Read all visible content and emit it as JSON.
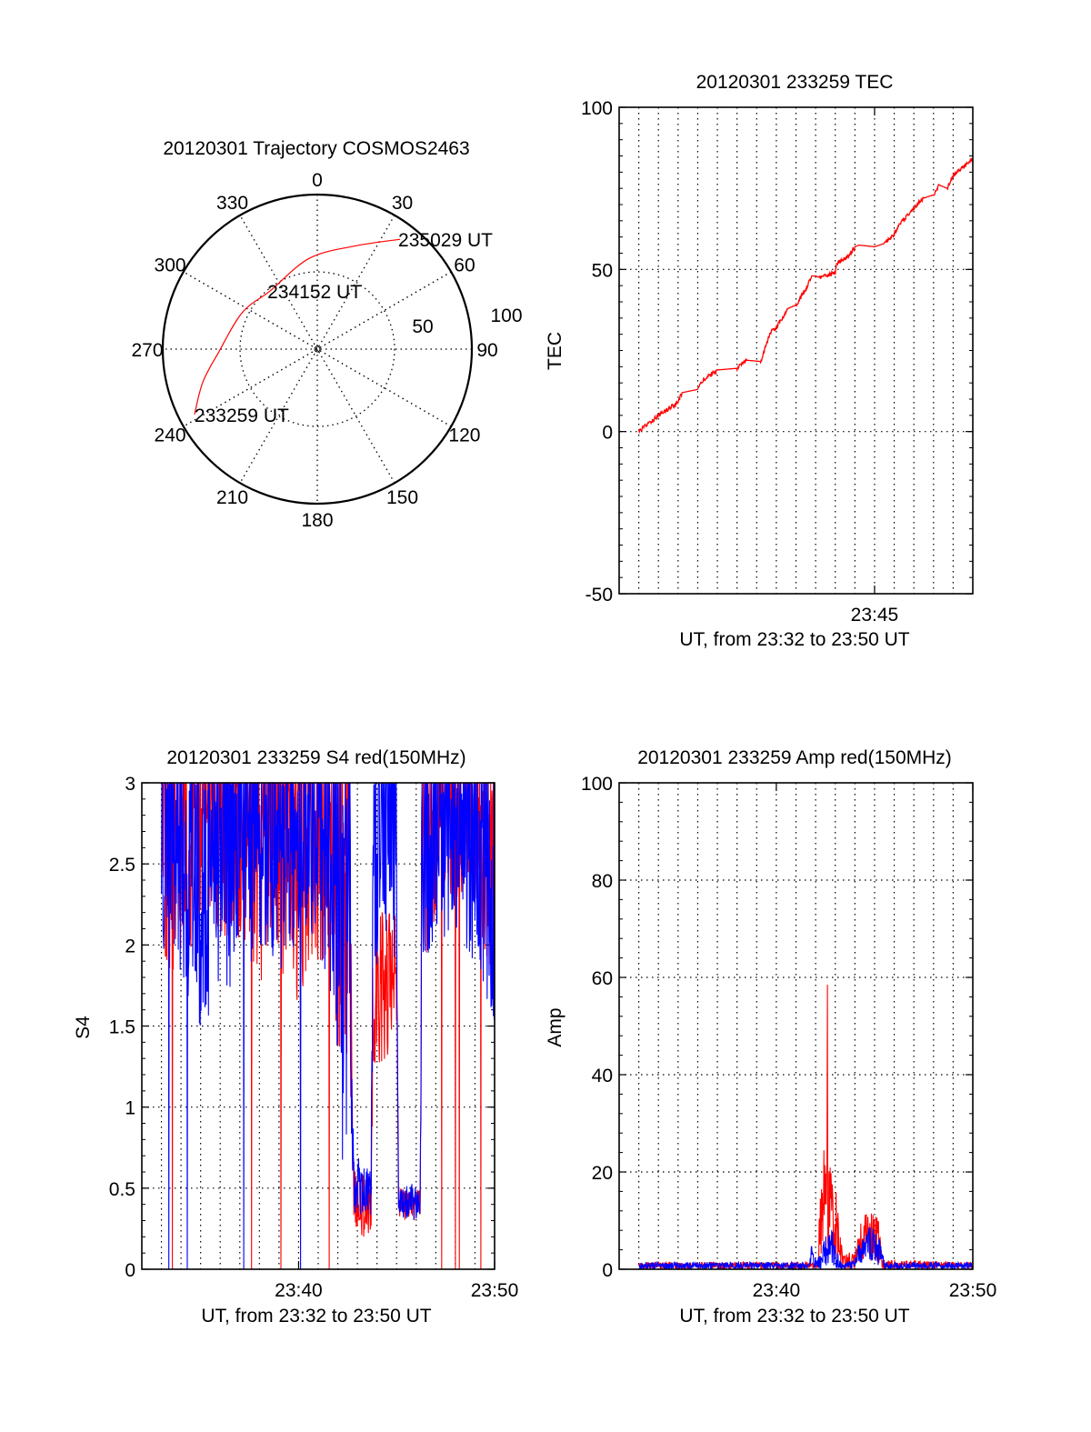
{
  "colors": {
    "red": "#ff0000",
    "blue": "#0000ff",
    "axis": "#000000"
  },
  "chart_data": [
    {
      "type": "scatter",
      "subtype": "polar-trajectory",
      "title": "20120301 Trajectory COSMOS2463",
      "azimuth_ticks": [
        0,
        30,
        60,
        90,
        120,
        150,
        180,
        210,
        240,
        270,
        300,
        330
      ],
      "radial_ticks": [
        50,
        100
      ],
      "radial_labels": [
        "50",
        "100"
      ],
      "rlim": [
        0,
        100
      ],
      "grid": true,
      "trajectory": {
        "color": "red",
        "points_az_r": [
          [
            242,
            90
          ],
          [
            254,
            77
          ],
          [
            268,
            64
          ],
          [
            296,
            54
          ],
          [
            321,
            48.5
          ],
          [
            355,
            59
          ],
          [
            20,
            71
          ],
          [
            37,
            89
          ]
        ]
      },
      "annotations": [
        {
          "text": "233259 UT",
          "az": 242,
          "r": 90
        },
        {
          "text": "234152 UT",
          "az": 321,
          "r": 48.5
        },
        {
          "text": "235029 UT",
          "az": 37,
          "r": 89
        }
      ]
    },
    {
      "type": "line",
      "title": "20120301 233259 TEC",
      "xlabel": "UT, from 23:32 to 23:50 UT",
      "ylabel": "TEC",
      "xlim_minutes_from_2332": [
        0,
        18
      ],
      "ylim": [
        -50,
        100
      ],
      "yticks": [
        -50,
        0,
        50,
        100
      ],
      "ytick_labels": [
        "-50",
        "0",
        "50",
        "100"
      ],
      "xticks": [
        13
      ],
      "xtick_labels": [
        "23:45"
      ],
      "grid": true,
      "series": [
        {
          "name": "TEC",
          "color": "red",
          "x_minutes_from_2332": [
            1,
            2,
            3,
            3.2,
            4,
            4.3,
            5,
            6,
            6.5,
            7.2,
            7.5,
            7.7,
            8,
            8.6,
            9,
            9.5,
            9.8,
            10,
            10.2,
            11,
            11.1,
            11.7,
            12,
            12.2,
            13,
            13.5,
            14,
            14.3,
            15,
            15.5,
            16,
            16.3,
            16.7,
            17,
            17.6,
            18
          ],
          "y": [
            0,
            5,
            9,
            12,
            13,
            16,
            19,
            19.5,
            22,
            21.6,
            27,
            30.6,
            32,
            38,
            39,
            44,
            48,
            48,
            47.5,
            49,
            52,
            54,
            57,
            57.5,
            57,
            58,
            61,
            64,
            69,
            72,
            73,
            76,
            75,
            79,
            82,
            84
          ]
        }
      ]
    },
    {
      "type": "line",
      "title": "20120301 233259 S4 red(150MHz)",
      "xlabel": "UT, from 23:32 to 23:50 UT",
      "ylabel": "S4",
      "xlim_minutes_from_2332": [
        0,
        18
      ],
      "ylim": [
        0,
        3
      ],
      "yticks": [
        0,
        0.5,
        1,
        1.5,
        2,
        2.5,
        3
      ],
      "ytick_labels": [
        "0",
        "0.5",
        "1",
        "1.5",
        "2",
        "2.5",
        "3"
      ],
      "xticks": [
        8,
        18
      ],
      "xtick_labels": [
        "23:40",
        "23:50"
      ],
      "grid": true,
      "series": [
        {
          "name": "red",
          "color": "red",
          "envelope_minute_lo_hi": [
            [
              1,
              2.0,
              3.5
            ],
            [
              1.5,
              1.8,
              3.5
            ],
            [
              2,
              1.6,
              3.5
            ],
            [
              2.5,
              1.8,
              3.5
            ],
            [
              3,
              2.0,
              3.5
            ],
            [
              3.5,
              2.2,
              3.5
            ],
            [
              4,
              1.9,
              3.5
            ],
            [
              4.5,
              2.1,
              3.5
            ],
            [
              5,
              1.9,
              3.5
            ],
            [
              5.5,
              2.0,
              3.5
            ],
            [
              6,
              1.7,
              3.5
            ],
            [
              6.5,
              2.1,
              3.5
            ],
            [
              7,
              1.7,
              3.5
            ],
            [
              7.5,
              1.9,
              3.5
            ],
            [
              8,
              1.6,
              3.5
            ],
            [
              8.5,
              1.9,
              3.5
            ],
            [
              9,
              1.8,
              3.5
            ],
            [
              9.5,
              1.8,
              3.5
            ],
            [
              10,
              1.3,
              3.5
            ],
            [
              10.6,
              1.0,
              3.5
            ],
            [
              10.8,
              0.2,
              0.7
            ],
            [
              11.7,
              0.2,
              0.5
            ],
            [
              11.8,
              1.2,
              2.3
            ],
            [
              12.5,
              1.3,
              2.2
            ],
            [
              13.0,
              1.4,
              2.2
            ],
            [
              13.1,
              0.3,
              0.5
            ],
            [
              14.2,
              0.3,
              0.5
            ],
            [
              14.3,
              1.8,
              3.5
            ],
            [
              15,
              2.2,
              3.5
            ],
            [
              16,
              2.3,
              3.5
            ],
            [
              17,
              2.2,
              3.5
            ],
            [
              18,
              1.7,
              3.5
            ]
          ],
          "dropouts_to_zero": [
            1.57,
            5.6,
            7.1,
            9.55,
            15.3,
            16.0,
            16.2,
            17.3
          ]
        },
        {
          "name": "blue",
          "color": "blue",
          "envelope_minute_lo_hi": [
            [
              1,
              1.9,
              3.5
            ],
            [
              1.5,
              2.0,
              3.5
            ],
            [
              2,
              1.8,
              3.5
            ],
            [
              2.5,
              1.6,
              3.5
            ],
            [
              3,
              1.4,
              3.5
            ],
            [
              3.5,
              1.6,
              3.5
            ],
            [
              4,
              1.8,
              3.5
            ],
            [
              4.5,
              1.7,
              3.5
            ],
            [
              5,
              1.9,
              3.5
            ],
            [
              5.5,
              1.8,
              3.5
            ],
            [
              6,
              1.9,
              3.5
            ],
            [
              6.5,
              2.0,
              3.5
            ],
            [
              7,
              1.8,
              3.5
            ],
            [
              7.5,
              2.0,
              3.5
            ],
            [
              8,
              1.8,
              3.5
            ],
            [
              8.5,
              2.1,
              3.5
            ],
            [
              9,
              1.9,
              3.5
            ],
            [
              9.5,
              1.8,
              3.5
            ],
            [
              10.0,
              1.3,
              3.5
            ],
            [
              10.3,
              0.45,
              3.5
            ],
            [
              10.6,
              1.0,
              3.5
            ],
            [
              10.8,
              0.35,
              0.75
            ],
            [
              11.7,
              0.3,
              0.6
            ],
            [
              11.8,
              1.8,
              3.5
            ],
            [
              12.5,
              2.1,
              3.5
            ],
            [
              13.0,
              1.8,
              3.5
            ],
            [
              13.1,
              0.3,
              0.5
            ],
            [
              14.2,
              0.3,
              0.55
            ],
            [
              14.3,
              1.4,
              3.5
            ],
            [
              15,
              2.0,
              3.5
            ],
            [
              16,
              2.0,
              3.5
            ],
            [
              17,
              1.9,
              3.5
            ],
            [
              18,
              1.5,
              3.5
            ]
          ],
          "dropouts_to_zero": [
            1.39,
            2.33,
            5.2,
            8.1
          ]
        }
      ]
    },
    {
      "type": "line",
      "title": "20120301 233259 Amp red(150MHz)",
      "xlabel": "UT, from 23:32 to 23:50 UT",
      "ylabel": "Amp",
      "xlim_minutes_from_2332": [
        0,
        18
      ],
      "ylim": [
        0,
        100
      ],
      "yticks": [
        0,
        20,
        40,
        60,
        80,
        100
      ],
      "ytick_labels": [
        "0",
        "20",
        "40",
        "60",
        "80",
        "100"
      ],
      "xticks": [
        8,
        18
      ],
      "xtick_labels": [
        "23:40",
        "23:50"
      ],
      "grid": true,
      "series": [
        {
          "name": "red",
          "color": "red",
          "envelope_minute_lo_hi": [
            [
              1,
              0,
              1.5
            ],
            [
              10.1,
              0,
              1.5
            ],
            [
              10.2,
              2,
              12
            ],
            [
              10.4,
              5,
              25
            ],
            [
              10.6,
              3,
              22
            ],
            [
              10.9,
              3,
              20
            ],
            [
              11.2,
              0,
              12
            ],
            [
              11.4,
              0,
              3
            ],
            [
              12.0,
              0,
              4
            ],
            [
              12.2,
              1,
              9
            ],
            [
              12.6,
              2,
              12
            ],
            [
              13.2,
              1,
              11
            ],
            [
              13.4,
              0,
              2
            ],
            [
              18,
              0,
              1.5
            ]
          ],
          "peak": [
            10.6,
            58.5
          ]
        },
        {
          "name": "blue",
          "color": "blue",
          "envelope_minute_lo_hi": [
            [
              1,
              0,
              1.5
            ],
            [
              9.7,
              0,
              1.5
            ],
            [
              9.8,
              0,
              6
            ],
            [
              10.0,
              0,
              2
            ],
            [
              10.3,
              0,
              5
            ],
            [
              10.8,
              1,
              9
            ],
            [
              11.1,
              0,
              4
            ],
            [
              11.3,
              0,
              1.5
            ],
            [
              12.0,
              0,
              2
            ],
            [
              12.2,
              1,
              7
            ],
            [
              12.8,
              2,
              9
            ],
            [
              13.3,
              0,
              6
            ],
            [
              13.5,
              0,
              1.5
            ],
            [
              18,
              0,
              1.5
            ]
          ]
        }
      ]
    }
  ]
}
